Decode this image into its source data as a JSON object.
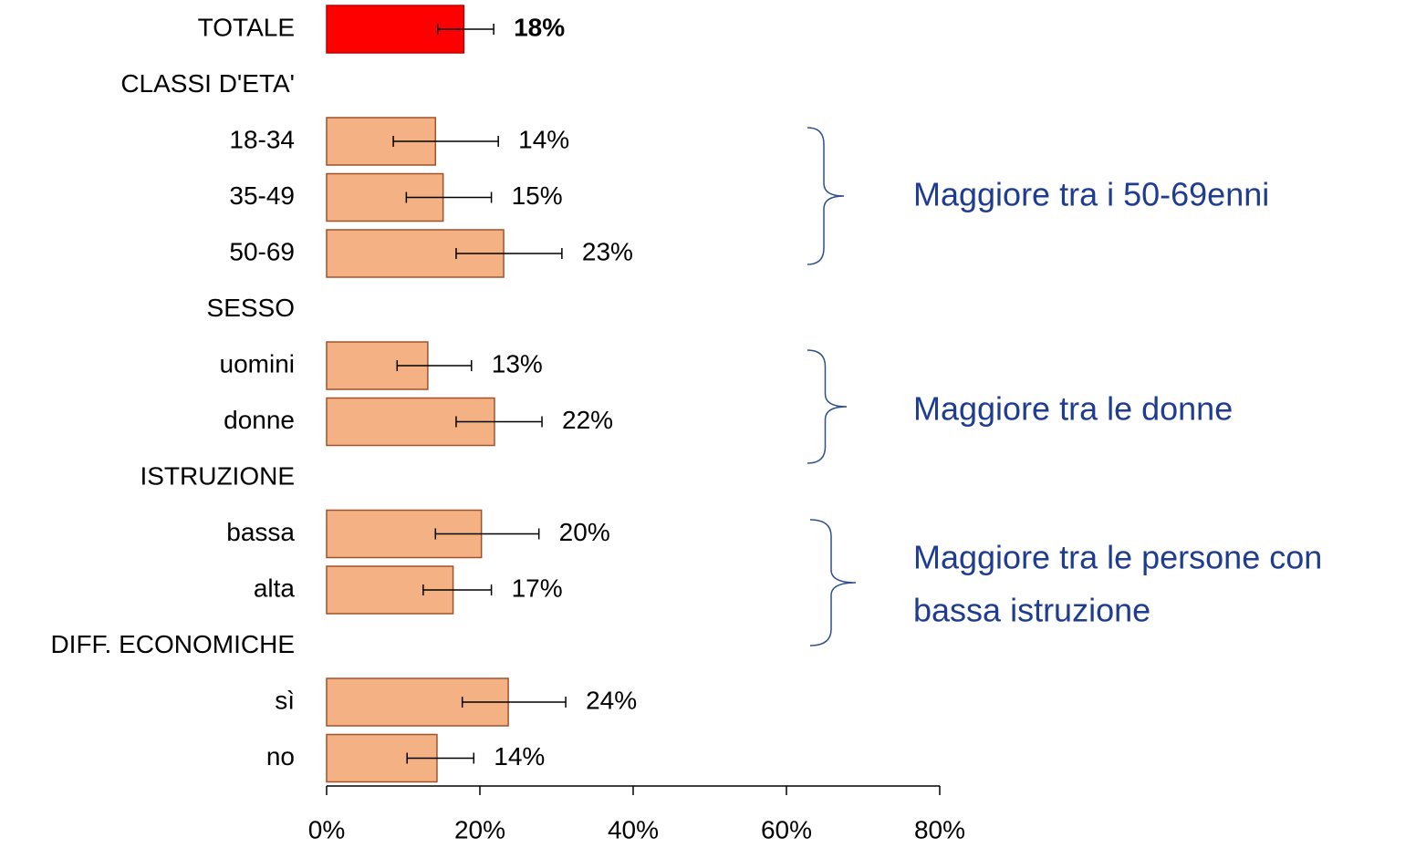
{
  "chart_data": {
    "type": "hbar",
    "categories": [
      "TOTALE",
      "CLASSI D'ETA'",
      "18-34",
      "35-49",
      "50-69",
      "SESSO",
      "uomini",
      "donne",
      "ISTRUZIONE",
      "bassa",
      "alta",
      "DIFF. ECONOMICHE",
      "sì",
      "no"
    ],
    "values": [
      17.9,
      null,
      14.2,
      15.2,
      23.1,
      null,
      13.2,
      21.9,
      null,
      20.2,
      16.5,
      null,
      23.7,
      14.4
    ],
    "value_labels": [
      "18%",
      null,
      "14%",
      "15%",
      "23%",
      null,
      "13%",
      "22%",
      null,
      "20%",
      "17%",
      null,
      "24%",
      "14%"
    ],
    "ci_low": [
      14.5,
      null,
      8.7,
      10.4,
      16.9,
      null,
      9.2,
      16.9,
      null,
      14.2,
      12.6,
      null,
      17.7,
      10.5
    ],
    "ci_high": [
      21.8,
      null,
      22.4,
      21.5,
      30.7,
      null,
      18.9,
      28.1,
      null,
      27.7,
      21.5,
      null,
      31.2,
      19.2
    ],
    "colors": [
      "#ff0000",
      null,
      "#f4b183",
      "#f4b183",
      "#f4b183",
      null,
      "#f4b183",
      "#f4b183",
      null,
      "#f4b183",
      "#f4b183",
      null,
      "#f4b183",
      "#f4b183"
    ],
    "xlim": [
      0,
      80
    ],
    "xticks": [
      {
        "value": 0,
        "label": "0%"
      },
      {
        "value": 20,
        "label": "20%"
      },
      {
        "value": 40,
        "label": "40%"
      },
      {
        "value": 60,
        "label": "60%"
      },
      {
        "value": 80,
        "label": "80%"
      }
    ],
    "annotations": [
      {
        "lines": [
          "Maggiore tra i 50-69enni"
        ]
      },
      {
        "lines": [
          "Maggiore tra le donne"
        ]
      },
      {
        "lines": [
          "Maggiore tra le persone con",
          "bassa istruzione"
        ]
      }
    ]
  }
}
